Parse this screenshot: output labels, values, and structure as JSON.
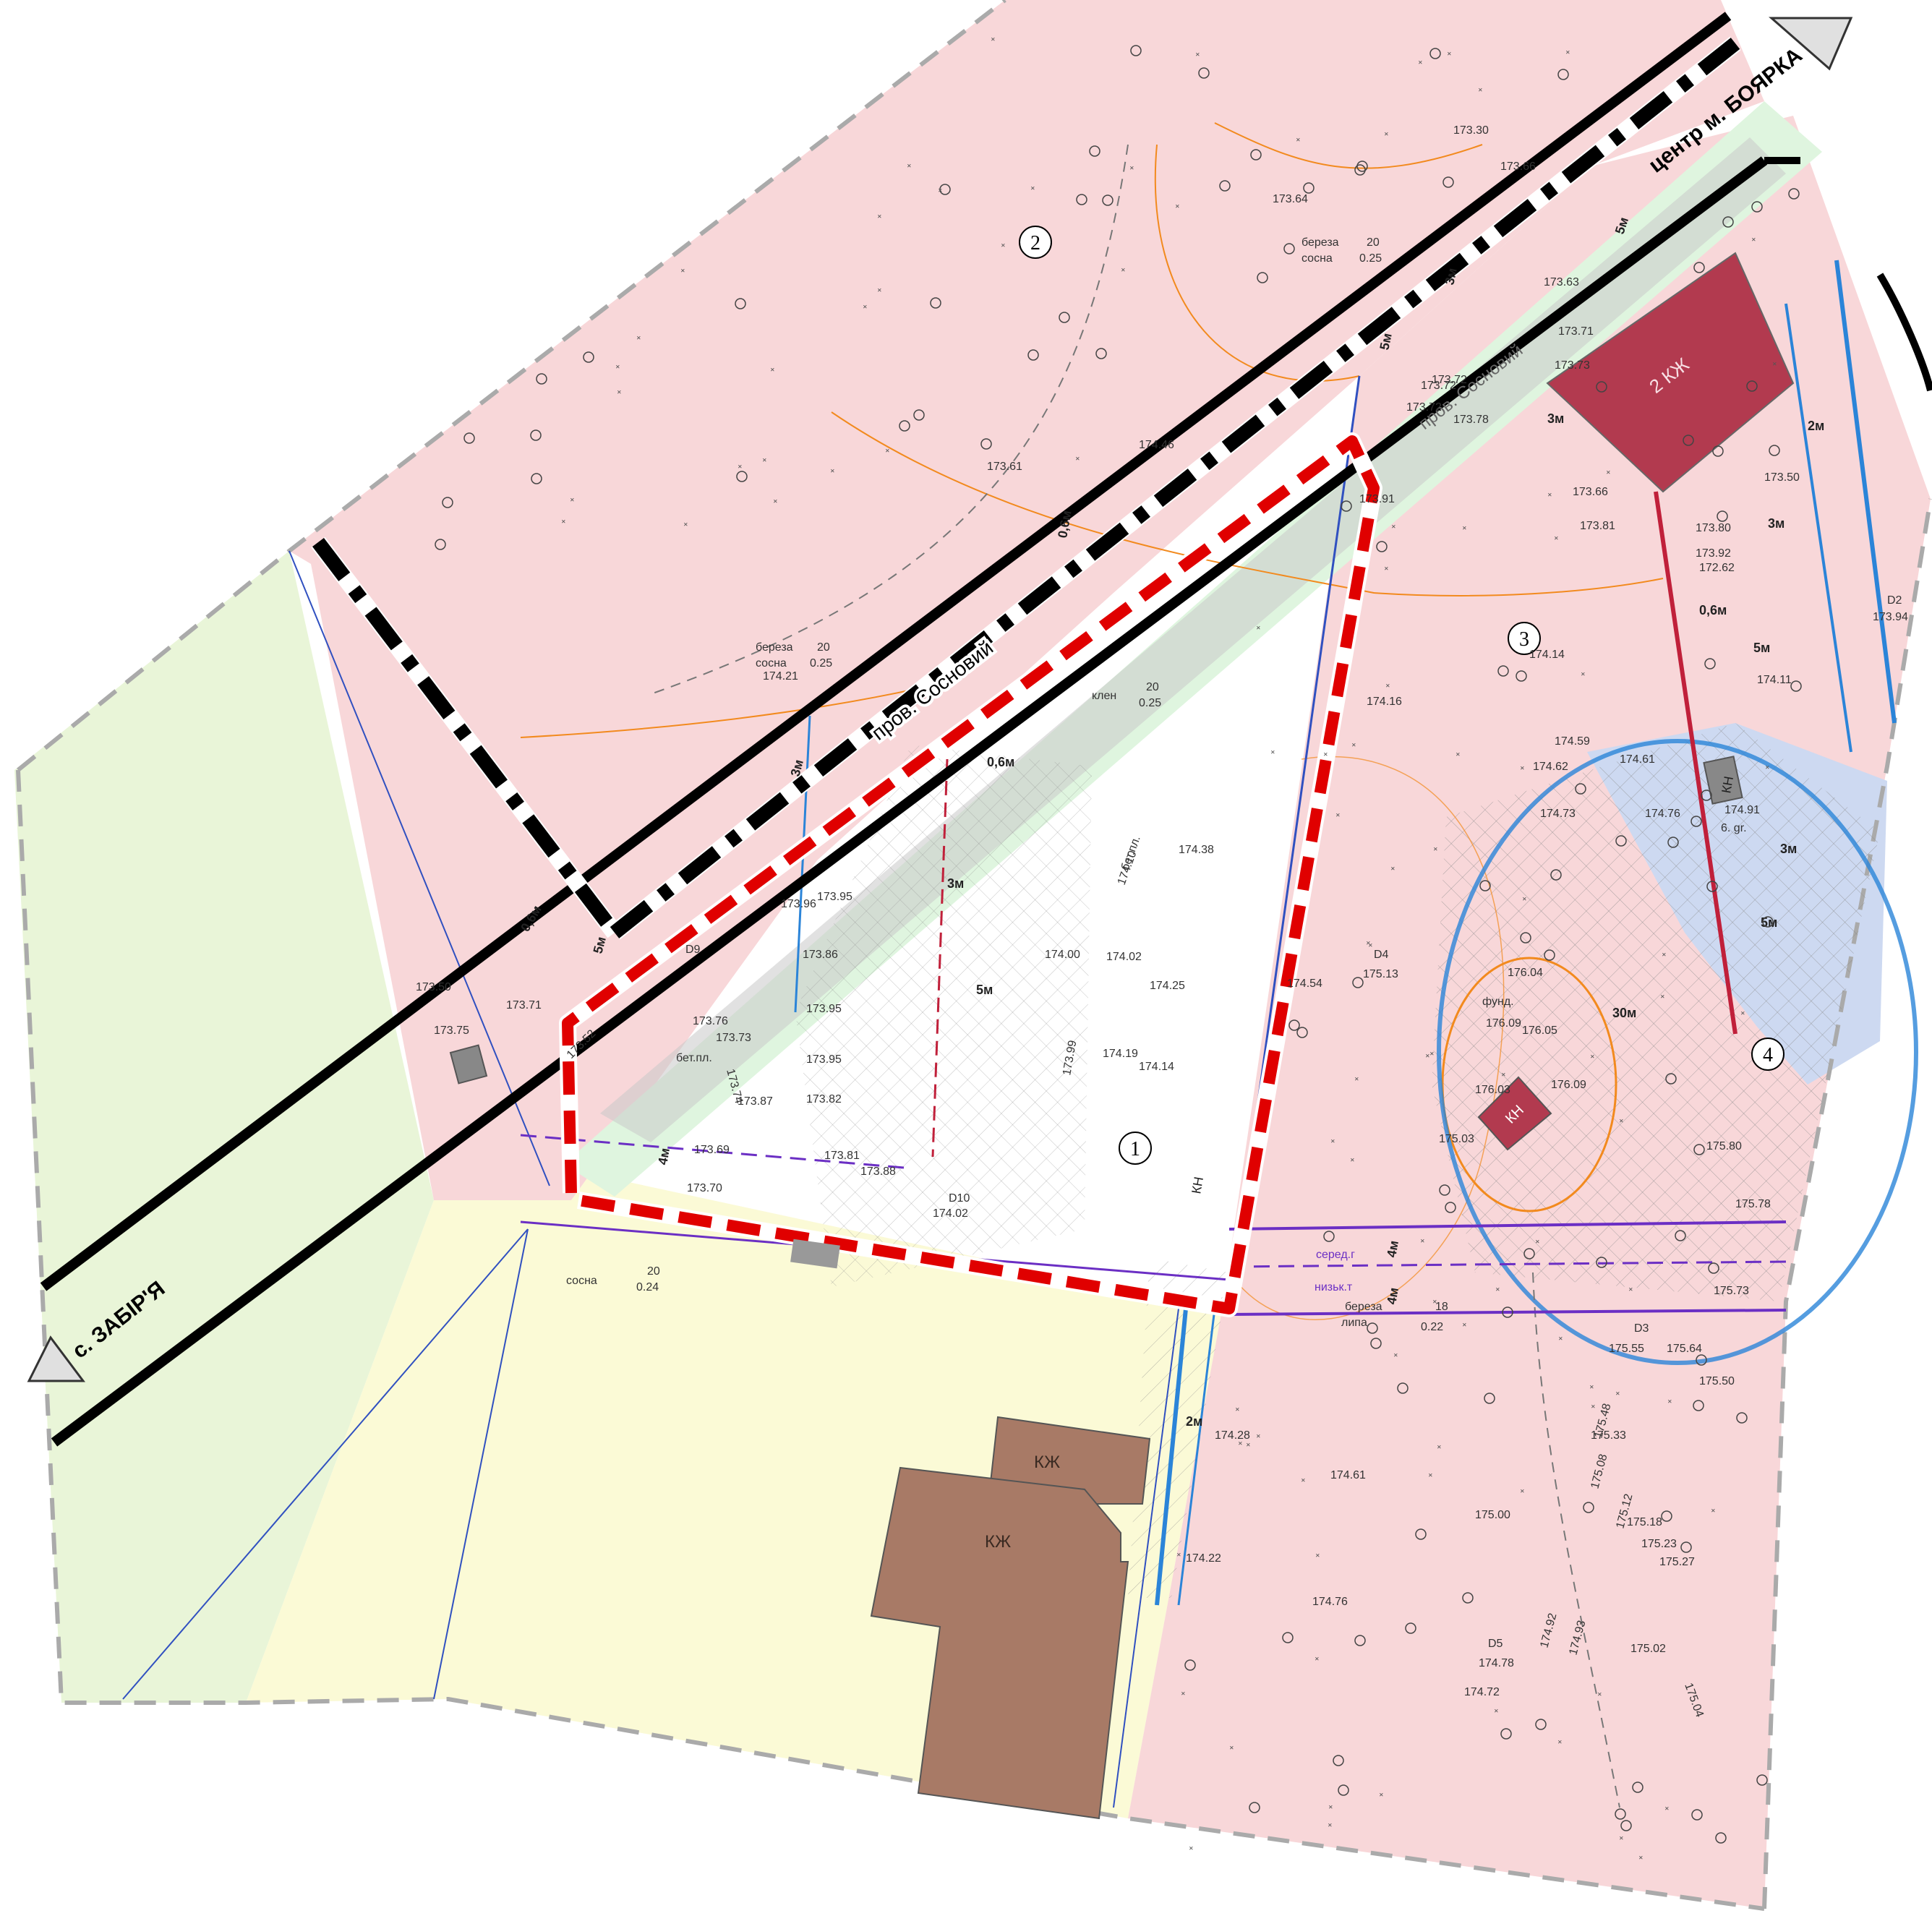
{
  "map": {
    "colors": {
      "plot_pink": "#f8d7d9",
      "plot_green": "#e9f5d8",
      "plot_yellow": "#fbfad6",
      "plot_mint": "#dff5df",
      "plot_blue": "#cdd9f1",
      "road_gray": "#c8c8c8",
      "building_red": "#b23a4f",
      "building_brown": "#a87a66",
      "boundary_red": "#e00000",
      "contour_orange": "#f28a1e",
      "pipe_blue": "#2b84d8",
      "gas_purple": "#6b2fc4"
    },
    "directions": {
      "to_boyarka": "центр м. БОЯРКА",
      "to_zabirya": "с. ЗАБІР'Я"
    },
    "street_name": "пров. Сосновий",
    "street_name_faint": "пров. Сосновий",
    "zones": [
      {
        "number": "1"
      },
      {
        "number": "2"
      },
      {
        "number": "3"
      },
      {
        "number": "4"
      }
    ],
    "buildings": [
      {
        "label": "2 КЖ"
      },
      {
        "label": "КЖ"
      },
      {
        "label": "КЖ"
      },
      {
        "label": "КН"
      },
      {
        "label": "КН"
      },
      {
        "label": "КН"
      }
    ],
    "offsets": [
      "0,6м",
      "0,6м",
      "0,6м",
      "0,6м",
      "3м",
      "3м",
      "3м",
      "3м",
      "3м",
      "3м",
      "5м",
      "5м",
      "5м",
      "5м",
      "5м",
      "5м",
      "4м",
      "4м",
      "4м",
      "2м",
      "2м",
      "30м"
    ],
    "elevations": [
      "173.30",
      "173.66",
      "173.64",
      "173.61",
      "174.21",
      "174.46",
      "173.72",
      "173.78",
      "173.91",
      "173.66",
      "173.81",
      "173.80",
      "173.92",
      "172.62",
      "173.50",
      "174.14",
      "174.16",
      "174.59",
      "174.61",
      "174.62",
      "174.73",
      "174.76",
      "174.91",
      "174.38",
      "174.10",
      "174.02",
      "174.25",
      "174.54",
      "175.13",
      "176.04",
      "176.09",
      "176.05",
      "176.09",
      "176.03",
      "175.03",
      "175.80",
      "175.78",
      "175.73",
      "175.55",
      "175.64",
      "175.50",
      "175.48",
      "175.33",
      "175.18",
      "175.23",
      "175.27",
      "175.08",
      "175.12",
      "174.92",
      "174.93",
      "175.02",
      "175.04",
      "175.00",
      "174.61",
      "174.76",
      "174.78",
      "174.72",
      "174.28",
      "174.22",
      "173.95",
      "173.96",
      "173.86",
      "173.95",
      "173.95",
      "173.87",
      "173.82",
      "173.81",
      "173.76",
      "173.74",
      "173.73",
      "173.69",
      "173.70",
      "173.88",
      "174.02",
      "174.19",
      "174.14",
      "174.00",
      "173.99",
      "173.50",
      "173.75",
      "173.71",
      "173.52",
      "173.63",
      "173.72",
      "173.71",
      "173.73",
      "173.72",
      "173.94",
      "174.11"
    ],
    "trees": [
      {
        "species": "береза",
        "second": "сосна",
        "value": "20",
        "value2": "0.25"
      },
      {
        "species": "береза",
        "second": "сосна",
        "value": "20",
        "value2": "0.25"
      },
      {
        "species": "клен",
        "second": "",
        "value": "20",
        "value2": "0.25"
      },
      {
        "species": "сосна",
        "second": "",
        "value": "20",
        "value2": "0.24"
      },
      {
        "species": "береза",
        "second": "липа",
        "value": "18",
        "value2": "0.22"
      }
    ],
    "points": [
      "D2",
      "D3",
      "D4",
      "D5",
      "D9",
      "D10"
    ],
    "notes": {
      "concrete_1": "бет.пл.",
      "concrete_2": "бет.пл.",
      "foundation": "фунд.",
      "gas_mid": "серед.г",
      "gas_low": "низьк.т",
      "bar_gr": "6. gr."
    }
  }
}
